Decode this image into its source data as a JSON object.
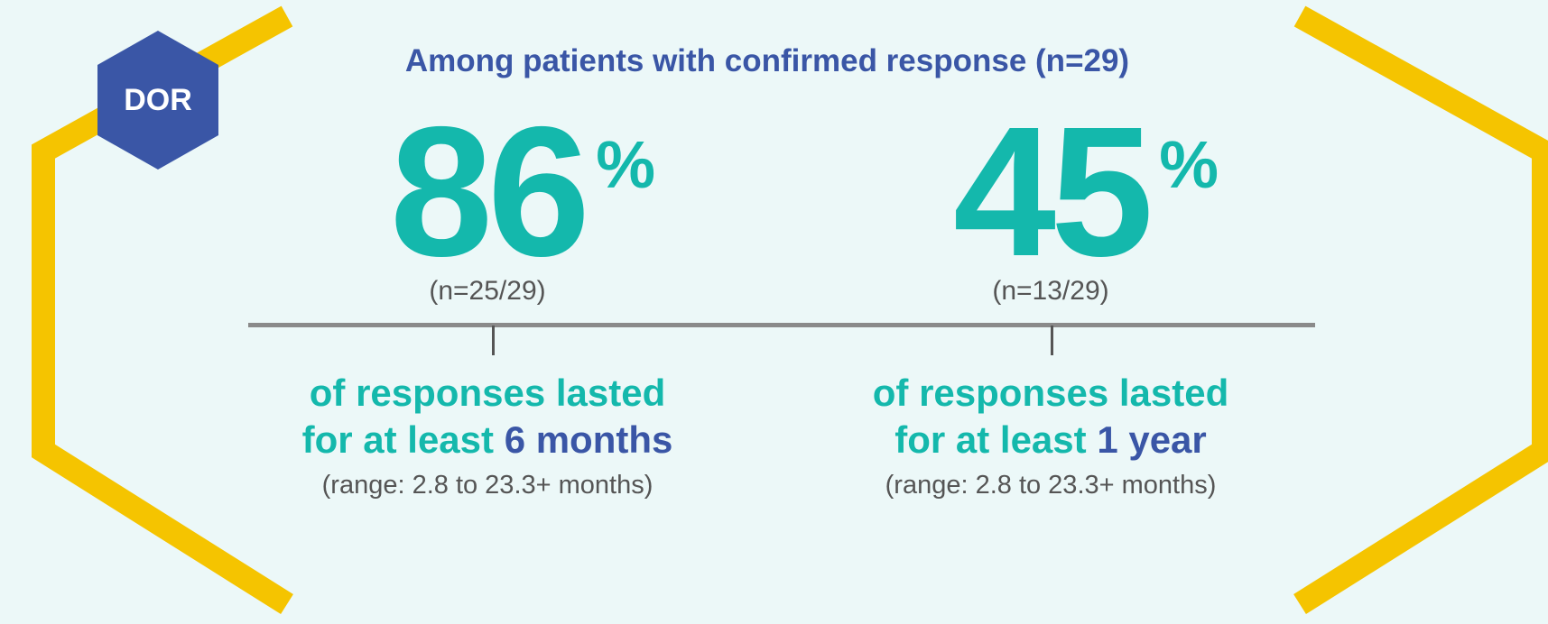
{
  "badge": {
    "label": "DOR"
  },
  "headline": "Among patients with confirmed response (n=29)",
  "stats": [
    {
      "value": "86",
      "unit": "%",
      "fraction": "(n=25/29)",
      "caption_line1": "of responses lasted",
      "caption_line2_prefix": "for at least ",
      "caption_line2_highlight": "6 months",
      "range": "(range: 2.8 to 23.3+ months)"
    },
    {
      "value": "45",
      "unit": "%",
      "fraction": "(n=13/29)",
      "caption_line1": "of responses lasted",
      "caption_line2_prefix": "for at least ",
      "caption_line2_highlight": "1 year",
      "range": "(range: 2.8 to 23.3+ months)"
    }
  ],
  "colors": {
    "background": "#ecf8f8",
    "teal": "#14b8ac",
    "navy": "#3a56a6",
    "frame_yellow": "#f5c400",
    "gray_text": "#555555",
    "timeline": "#8a8a8a"
  }
}
